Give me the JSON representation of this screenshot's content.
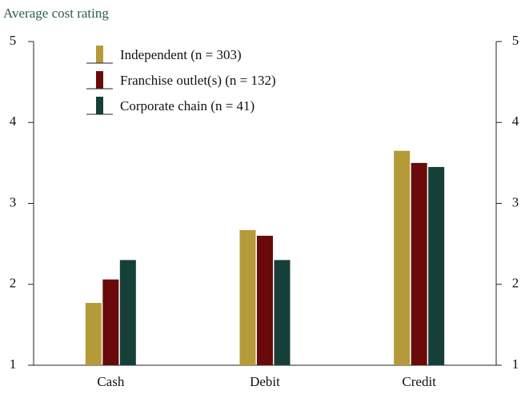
{
  "chart_data": {
    "type": "bar",
    "title": "Average cost rating",
    "categories": [
      "Cash",
      "Debit",
      "Credit"
    ],
    "series": [
      {
        "name": "Independent (n = 303)",
        "color": "#b59a3a",
        "values": [
          1.77,
          2.67,
          3.65
        ]
      },
      {
        "name": "Franchise outlet(s) (n = 132)",
        "color": "#6b0a0a",
        "values": [
          2.06,
          2.6,
          3.5
        ]
      },
      {
        "name": "Corporate chain (n = 41)",
        "color": "#173f3a",
        "values": [
          2.3,
          2.3,
          3.45
        ]
      }
    ],
    "ylim": [
      1,
      5
    ],
    "yticks": [
      1,
      2,
      3,
      4,
      5
    ],
    "legend": "upper left"
  }
}
